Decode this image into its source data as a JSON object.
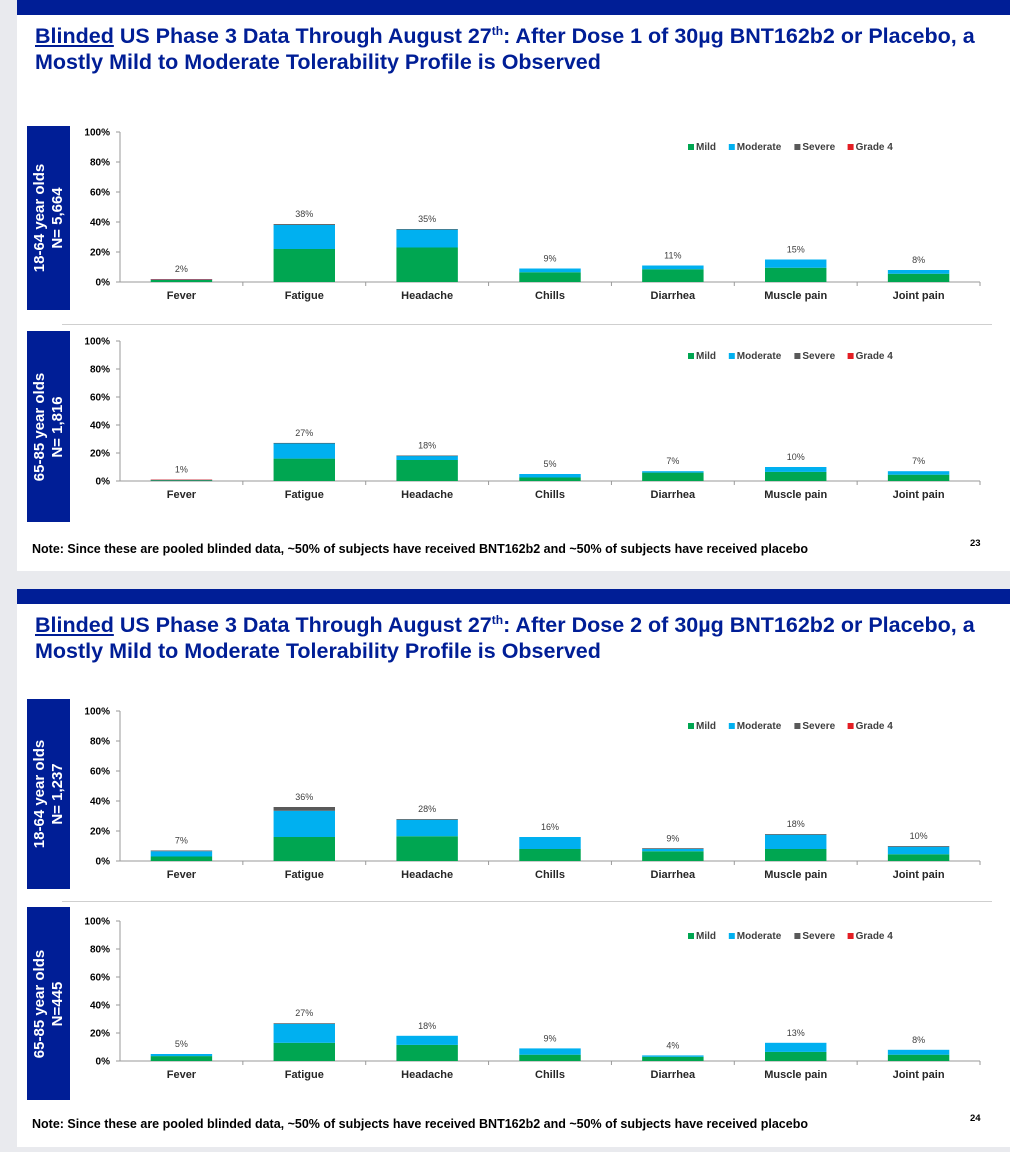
{
  "colors": {
    "mild": "#00a651",
    "moderate": "#00b0f0",
    "severe": "#595959",
    "grade4": "#e31e24",
    "brand": "#001e96"
  },
  "slides": [
    {
      "title_underlined": "Blinded",
      "title_pre": " US Phase 3 Data Through August 27",
      "title_sup": "th",
      "title_post": ": After Dose 1 of 30µg BNT162b2 or Placebo, a Mostly Mild to Moderate Tolerability Profile is Observed",
      "note": "Note:  Since these are pooled blinded data, ~50% of subjects have received BNT162b2 and ~50% of subjects have received placebo",
      "page_number": "23",
      "panels": [
        {
          "label_line1": "18-64 year olds",
          "label_line2": "N= 5,664"
        },
        {
          "label_line1": "65-85 year olds",
          "label_line2": "N= 1,816"
        }
      ]
    },
    {
      "title_underlined": "Blinded",
      "title_pre": " US Phase 3 Data Through August 27",
      "title_sup": "th",
      "title_post": ": After Dose 2 of 30µg BNT162b2 or Placebo, a Mostly Mild to Moderate Tolerability Profile is Observed",
      "note": "Note:  Since these are pooled blinded data, ~50% of subjects have received BNT162b2 and ~50% of subjects have received placebo",
      "page_number": "24",
      "panels": [
        {
          "label_line1": "18-64 year olds",
          "label_line2": "N= 1,237"
        },
        {
          "label_line1": "65-85 year olds",
          "label_line2": "N=445"
        }
      ]
    }
  ],
  "chart_data": [
    {
      "type": "bar",
      "stacked": true,
      "categories": [
        "Fever",
        "Fatigue",
        "Headache",
        "Chills",
        "Diarrhea",
        "Muscle pain",
        "Joint pain"
      ],
      "yticks": [
        "0%",
        "20%",
        "40%",
        "60%",
        "80%",
        "100%"
      ],
      "ylim": [
        0,
        100
      ],
      "legend": [
        "Mild",
        "Moderate",
        "Severe",
        "Grade 4"
      ],
      "legend_position": "top-right",
      "series": [
        {
          "name": "Mild",
          "values": [
            1.4,
            22,
            23,
            6.5,
            8.5,
            9.5,
            5.5
          ]
        },
        {
          "name": "Moderate",
          "values": [
            0.5,
            16,
            12,
            2.5,
            2.5,
            5.5,
            2.5
          ]
        },
        {
          "name": "Severe",
          "values": [
            0,
            0.6,
            0.3,
            0,
            0,
            0,
            0
          ]
        },
        {
          "name": "Grade 4",
          "values": [
            0.1,
            0,
            0,
            0,
            0,
            0,
            0
          ]
        }
      ],
      "data_labels": [
        "2%",
        "38%",
        "35%",
        "9%",
        "11%",
        "15%",
        "8%"
      ]
    },
    {
      "type": "bar",
      "stacked": true,
      "categories": [
        "Fever",
        "Fatigue",
        "Headache",
        "Chills",
        "Diarrhea",
        "Muscle pain",
        "Joint pain"
      ],
      "yticks": [
        "0%",
        "20%",
        "40%",
        "60%",
        "80%",
        "100%"
      ],
      "ylim": [
        0,
        100
      ],
      "legend": [
        "Mild",
        "Moderate",
        "Severe",
        "Grade 4"
      ],
      "legend_position": "top-right",
      "series": [
        {
          "name": "Mild",
          "values": [
            0.7,
            16,
            15,
            2.5,
            6,
            6.5,
            4.5
          ]
        },
        {
          "name": "Moderate",
          "values": [
            0.2,
            11,
            3,
            2.5,
            1,
            3.5,
            2.5
          ]
        },
        {
          "name": "Severe",
          "values": [
            0,
            0.2,
            0.2,
            0,
            0,
            0,
            0
          ]
        },
        {
          "name": "Grade 4",
          "values": [
            0.1,
            0,
            0,
            0,
            0,
            0,
            0
          ]
        }
      ],
      "data_labels": [
        "1%",
        "27%",
        "18%",
        "5%",
        "7%",
        "10%",
        "7%"
      ]
    },
    {
      "type": "bar",
      "stacked": true,
      "categories": [
        "Fever",
        "Fatigue",
        "Headache",
        "Chills",
        "Diarrhea",
        "Muscle pain",
        "Joint pain"
      ],
      "yticks": [
        "0%",
        "20%",
        "40%",
        "60%",
        "80%",
        "100%"
      ],
      "ylim": [
        0,
        100
      ],
      "legend": [
        "Mild",
        "Moderate",
        "Severe",
        "Grade 4"
      ],
      "legend_position": "top-right",
      "series": [
        {
          "name": "Mild",
          "values": [
            3,
            16,
            16.5,
            8,
            6.5,
            8,
            4.5
          ]
        },
        {
          "name": "Moderate",
          "values": [
            3.5,
            17.5,
            11,
            8,
            1.5,
            9.5,
            5
          ]
        },
        {
          "name": "Severe",
          "values": [
            0.5,
            2.5,
            0.5,
            0,
            0.5,
            0.5,
            0.5
          ]
        },
        {
          "name": "Grade 4",
          "values": [
            0,
            0,
            0,
            0,
            0,
            0,
            0
          ]
        }
      ],
      "data_labels": [
        "7%",
        "36%",
        "28%",
        "16%",
        "9%",
        "18%",
        "10%"
      ]
    },
    {
      "type": "bar",
      "stacked": true,
      "categories": [
        "Fever",
        "Fatigue",
        "Headache",
        "Chills",
        "Diarrhea",
        "Muscle pain",
        "Joint pain"
      ],
      "yticks": [
        "0%",
        "20%",
        "40%",
        "60%",
        "80%",
        "100%"
      ],
      "ylim": [
        0,
        100
      ],
      "legend": [
        "Mild",
        "Moderate",
        "Severe",
        "Grade 4"
      ],
      "legend_position": "top-right",
      "series": [
        {
          "name": "Mild",
          "values": [
            3.5,
            13,
            11.5,
            4.5,
            3,
            6.5,
            4.5
          ]
        },
        {
          "name": "Moderate",
          "values": [
            1.5,
            13.5,
            6.5,
            4.5,
            1,
            6.5,
            3.5
          ]
        },
        {
          "name": "Severe",
          "values": [
            0,
            0.5,
            0,
            0,
            0,
            0,
            0
          ]
        },
        {
          "name": "Grade 4",
          "values": [
            0,
            0,
            0,
            0,
            0,
            0,
            0
          ]
        }
      ],
      "data_labels": [
        "5%",
        "27%",
        "18%",
        "9%",
        "4%",
        "13%",
        "8%"
      ]
    }
  ]
}
